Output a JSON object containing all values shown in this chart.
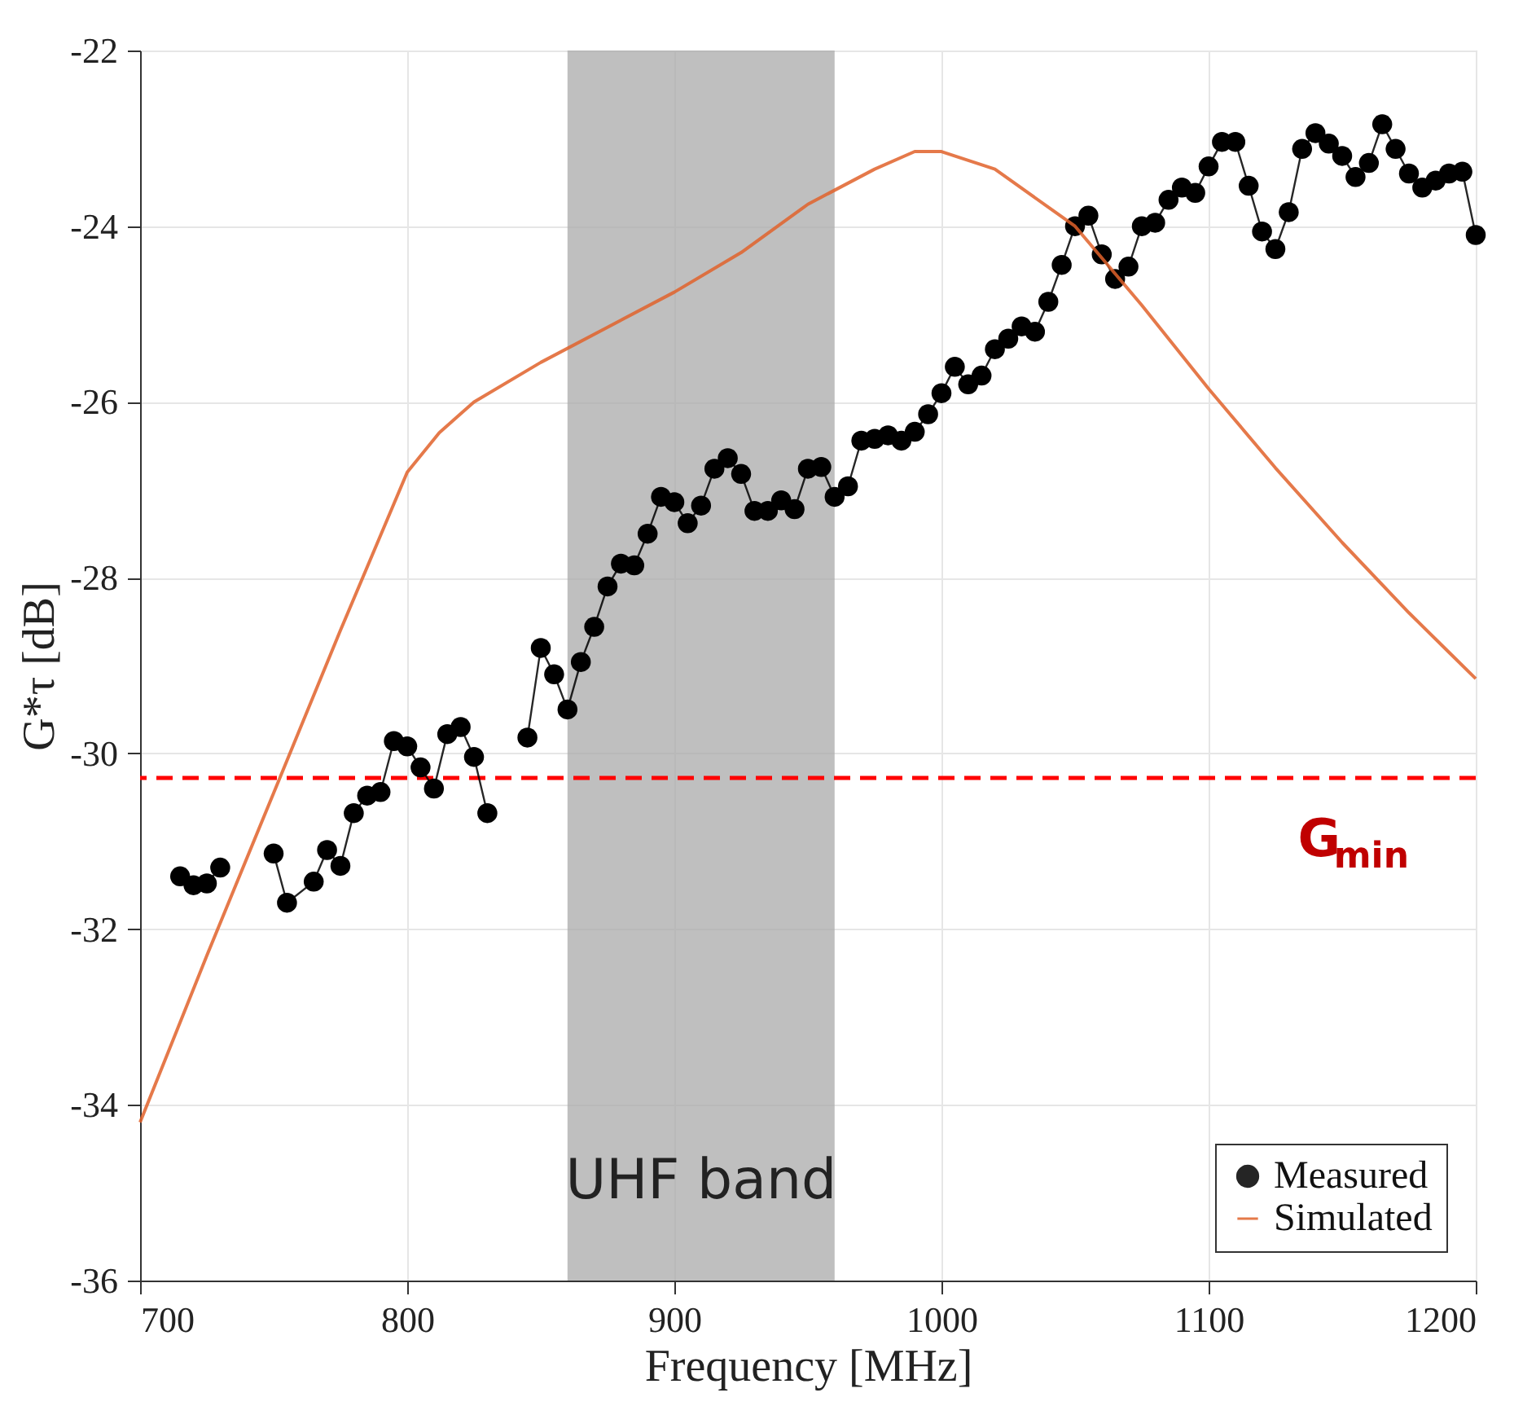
{
  "chart_data": {
    "type": "line",
    "xlabel": "Frequency [MHz]",
    "ylabel": "G*τ [dB]",
    "xlim": [
      700,
      1200
    ],
    "xticks": [
      700,
      800,
      900,
      1000,
      1100,
      1200
    ],
    "ylim": [
      -36,
      -22
    ],
    "yticks": [
      -36,
      -34,
      -32,
      -30,
      -28,
      -26,
      -24,
      -22
    ],
    "grid": true,
    "legend": "bottom right",
    "series": [
      {
        "name": "Measured",
        "color": "#000000",
        "marker": "circle",
        "x": [
          715,
          720,
          725,
          730,
          740,
          750,
          755,
          765,
          770,
          775,
          780,
          785,
          790,
          795,
          800,
          805,
          810,
          815,
          820,
          825,
          830,
          840,
          845,
          850,
          855,
          860,
          865,
          870,
          875,
          880,
          885,
          890,
          895,
          900,
          905,
          910,
          915,
          920,
          925,
          930,
          935,
          940,
          945,
          950,
          955,
          960,
          965,
          970,
          975,
          980,
          985,
          990,
          995,
          1000,
          1005,
          1010,
          1015,
          1020,
          1025,
          1030,
          1035,
          1040,
          1045,
          1050,
          1055,
          1060,
          1065,
          1070,
          1075,
          1080,
          1085,
          1090,
          1095,
          1100,
          1105,
          1110,
          1115,
          1120,
          1125,
          1130,
          1135,
          1140,
          1145,
          1150,
          1155,
          1160,
          1165,
          1170,
          1175,
          1180,
          1185,
          1190,
          1195,
          1200
        ],
        "values": [
          -31.4,
          -31.5,
          -31.48,
          -31.3,
          null,
          -31.14,
          -31.7,
          -31.46,
          -31.1,
          -31.28,
          -30.68,
          -30.48,
          -30.44,
          -29.86,
          -29.92,
          -30.16,
          -30.4,
          -29.78,
          -29.7,
          -30.04,
          -30.68,
          null,
          -29.82,
          -28.8,
          -29.1,
          -29.5,
          -28.96,
          -28.56,
          -28.1,
          -27.84,
          -27.86,
          -27.5,
          -27.08,
          -27.14,
          -27.38,
          -27.18,
          -26.76,
          -26.64,
          -26.82,
          -27.24,
          -27.24,
          -27.12,
          -27.22,
          -26.76,
          -26.74,
          -27.08,
          -26.96,
          -26.44,
          -26.42,
          -26.38,
          -26.44,
          -26.34,
          -26.14,
          -25.9,
          -25.6,
          -25.8,
          -25.7,
          -25.4,
          -25.28,
          -25.14,
          -25.2,
          -24.86,
          -24.44,
          -24.0,
          -23.88,
          -24.32,
          -24.6,
          -24.46,
          -24.0,
          -23.96,
          -23.7,
          -23.56,
          -23.62,
          -23.32,
          -23.04,
          -23.04,
          -23.54,
          -24.06,
          -24.26,
          -23.84,
          -23.12,
          -22.94,
          -23.06,
          -23.2,
          -23.44,
          -23.28,
          -22.84,
          -23.12,
          -23.4,
          -23.56,
          -23.48,
          -23.4,
          -23.38,
          -24.1
        ]
      },
      {
        "name": "Simulated",
        "color": "#e0622a",
        "marker": "none",
        "x": [
          700,
          725,
          750,
          775,
          800,
          812,
          825,
          850,
          875,
          900,
          925,
          950,
          975,
          990,
          1000,
          1020,
          1050,
          1075,
          1100,
          1125,
          1150,
          1175,
          1200
        ],
        "values": [
          -34.2,
          -32.3,
          -30.45,
          -28.6,
          -26.8,
          -26.35,
          -26.0,
          -25.55,
          -25.15,
          -24.75,
          -24.3,
          -23.75,
          -23.35,
          -23.15,
          -23.15,
          -23.35,
          -24.0,
          -24.9,
          -25.85,
          -26.75,
          -27.6,
          -28.4,
          -29.15
        ]
      }
    ],
    "ref_lines": [
      {
        "axis": "y",
        "value": -30.28,
        "label": "G$_{min}$",
        "color": "#ff0000",
        "line_style": "dashed"
      }
    ],
    "bands": [
      {
        "axis": "x",
        "from": 860,
        "to": 960,
        "label": "UHF band",
        "color": "#a9a9a9"
      }
    ]
  }
}
